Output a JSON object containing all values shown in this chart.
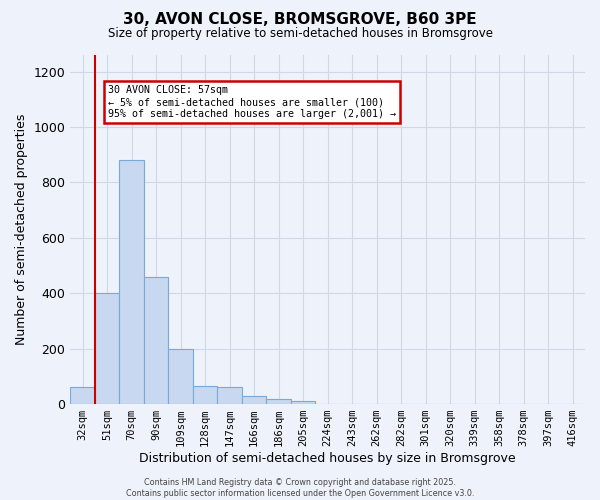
{
  "title": "30, AVON CLOSE, BROMSGROVE, B60 3PE",
  "subtitle": "Size of property relative to semi-detached houses in Bromsgrove",
  "xlabel": "Distribution of semi-detached houses by size in Bromsgrove",
  "ylabel": "Number of semi-detached properties",
  "bar_values": [
    60,
    400,
    880,
    460,
    200,
    65,
    60,
    30,
    20,
    10,
    0,
    0,
    0,
    0,
    0,
    0,
    0,
    0,
    0,
    0,
    0
  ],
  "bin_labels": [
    "32sqm",
    "51sqm",
    "70sqm",
    "90sqm",
    "109sqm",
    "128sqm",
    "147sqm",
    "166sqm",
    "186sqm",
    "205sqm",
    "224sqm",
    "243sqm",
    "262sqm",
    "282sqm",
    "301sqm",
    "320sqm",
    "339sqm",
    "358sqm",
    "378sqm",
    "397sqm",
    "416sqm"
  ],
  "bar_color": "#c8d8f0",
  "bar_edge_color": "#7aa8d8",
  "vline_x_index": 1,
  "vline_color": "#cc0000",
  "annotation_title": "30 AVON CLOSE: 57sqm",
  "annotation_line1": "← 5% of semi-detached houses are smaller (100)",
  "annotation_line2": "95% of semi-detached houses are larger (2,001) →",
  "annotation_box_edgecolor": "#cc0000",
  "ylim": [
    0,
    1260
  ],
  "yticks": [
    0,
    200,
    400,
    600,
    800,
    1000,
    1200
  ],
  "footer_line1": "Contains HM Land Registry data © Crown copyright and database right 2025.",
  "footer_line2": "Contains public sector information licensed under the Open Government Licence v3.0.",
  "bg_color": "#eef2fa",
  "grid_color": "#d0d8e8"
}
